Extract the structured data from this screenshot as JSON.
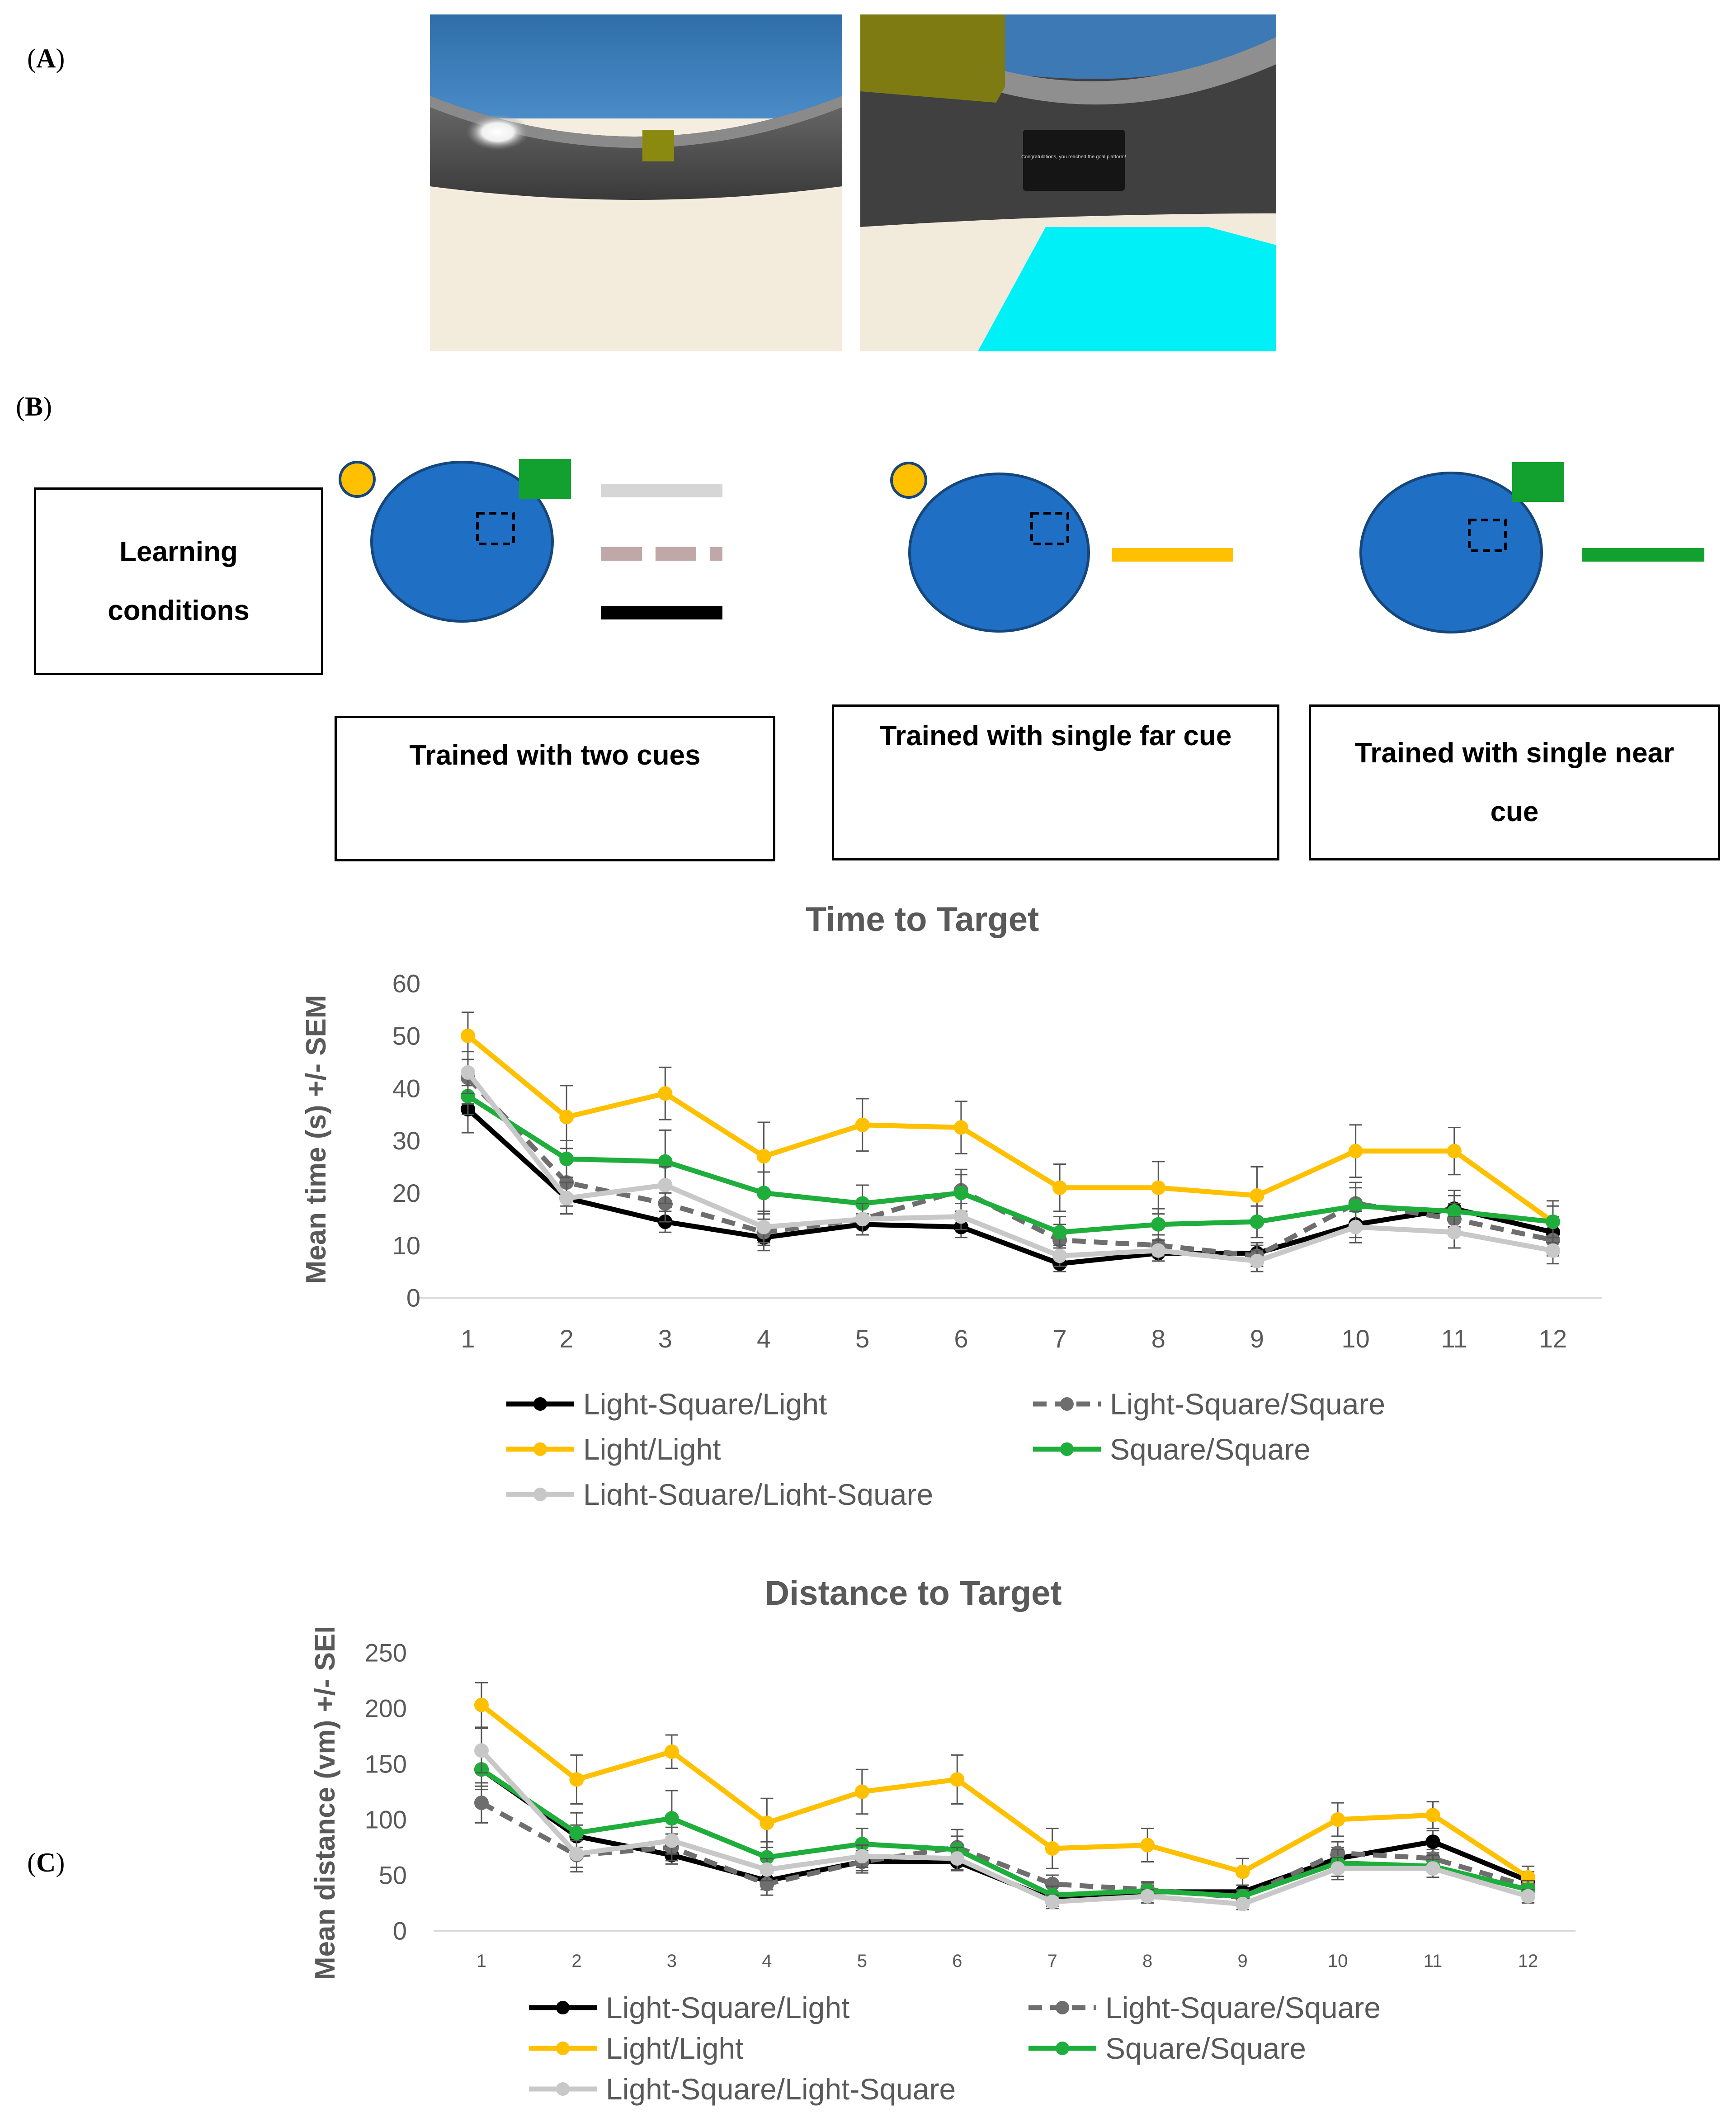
{
  "panels": {
    "a": "A",
    "b": "B",
    "c": "C"
  },
  "screenshots": {
    "left": {
      "description_free": true
    },
    "right": {
      "message": "Congratulations, you reached the goal platform!"
    }
  },
  "learning": {
    "label_line1": "Learning",
    "label_line2": "conditions",
    "groups": [
      {
        "label": "Trained with two cues"
      },
      {
        "label": "Trained with single far cue"
      },
      {
        "label_line1": "Trained with single near",
        "label_line2": "cue"
      }
    ]
  },
  "colors": {
    "pool": "#1f6fc5",
    "pool_edge": "#15467c",
    "light_cue": "#ffc000",
    "square_cue": "#12a12e",
    "black": "#000000",
    "dark_gray": "#6e6e6e",
    "yellow": "#ffc000",
    "green": "#1fae3c",
    "light_gray": "#c8c8c8",
    "pink_gray": "#c0a8a8",
    "axis_text": "#595959"
  },
  "chart_data": [
    {
      "type": "line",
      "title": "Time to Target",
      "xlabel": "",
      "ylabel": "Mean time (s) +/- SEM",
      "categories": [
        "1",
        "2",
        "3",
        "4",
        "5",
        "6",
        "7",
        "8",
        "9",
        "10",
        "11",
        "12"
      ],
      "ylim": [
        0,
        60
      ],
      "yticks": [
        0,
        10,
        20,
        30,
        40,
        50,
        60
      ],
      "series": [
        {
          "name": "Light-Square/Light",
          "color": "#000000",
          "dashed": false,
          "values": [
            36,
            19,
            14.5,
            11.5,
            14,
            13.5,
            6.5,
            8.5,
            8.5,
            14,
            17,
            12.5
          ],
          "err": [
            4.5,
            3,
            2,
            2.5,
            2,
            2,
            1.5,
            1.5,
            2,
            2.5,
            3.5,
            3
          ]
        },
        {
          "name": "Light-Square/Square",
          "color": "#6e6e6e",
          "dashed": true,
          "values": [
            42,
            22,
            18,
            12.5,
            15,
            20.5,
            11,
            10,
            8,
            18,
            15,
            11
          ],
          "err": [
            5,
            4.5,
            3.5,
            2.5,
            3,
            4,
            3,
            2,
            2,
            4,
            3,
            3
          ]
        },
        {
          "name": "Light/Light",
          "color": "#ffc000",
          "dashed": false,
          "values": [
            50,
            34.5,
            39,
            27,
            33,
            32.5,
            21,
            21,
            19.5,
            28,
            28,
            14.5
          ],
          "err": [
            4.5,
            6,
            5,
            6.5,
            5,
            5,
            4.5,
            5,
            5.5,
            5,
            4.5,
            4
          ]
        },
        {
          "name": "Square/Square",
          "color": "#1fae3c",
          "dashed": false,
          "values": [
            38.5,
            26.5,
            26,
            20,
            18,
            20,
            12.5,
            14,
            14.5,
            17.5,
            16.5,
            14.5
          ],
          "err": [
            3.5,
            3.5,
            6,
            4,
            3.5,
            3.5,
            3,
            3,
            3,
            3.5,
            3,
            3
          ]
        },
        {
          "name": "Light-Square/Light-Square",
          "color": "#c8c8c8",
          "dashed": false,
          "values": [
            43,
            19,
            21.5,
            13.5,
            15,
            15.5,
            8,
            9,
            7,
            13.5,
            12.5,
            9
          ],
          "err": [
            4,
            3,
            3.5,
            3,
            3,
            2.5,
            2,
            2,
            2,
            3,
            3,
            2.5
          ]
        }
      ]
    },
    {
      "type": "line",
      "title": "Distance to Target",
      "xlabel": "",
      "ylabel": "Mean distance (vm) +/- SEM",
      "categories": [
        "1",
        "2",
        "3",
        "4",
        "5",
        "6",
        "7",
        "8",
        "9",
        "10",
        "11",
        "12"
      ],
      "ylim": [
        0,
        250
      ],
      "yticks": [
        0,
        50,
        100,
        150,
        200,
        250
      ],
      "series": [
        {
          "name": "Light-Square/Light",
          "color": "#000000",
          "dashed": false,
          "values": [
            145,
            85,
            68,
            45,
            62,
            62,
            28,
            35,
            35,
            65,
            80,
            45
          ],
          "err": [
            18,
            10,
            8,
            8,
            8,
            8,
            6,
            6,
            6,
            10,
            10,
            8
          ]
        },
        {
          "name": "Light-Square/Square",
          "color": "#6e6e6e",
          "dashed": true,
          "values": [
            115,
            68,
            75,
            42,
            62,
            75,
            42,
            37,
            30,
            70,
            65,
            40
          ],
          "err": [
            18,
            15,
            12,
            10,
            10,
            10,
            8,
            6,
            6,
            10,
            8,
            8
          ]
        },
        {
          "name": "Light/Light",
          "color": "#ffc000",
          "dashed": false,
          "values": [
            203,
            136,
            161,
            97,
            125,
            136,
            74,
            77,
            53,
            100,
            104,
            48
          ],
          "err": [
            20,
            22,
            15,
            22,
            20,
            22,
            18,
            15,
            12,
            15,
            12,
            10
          ]
        },
        {
          "name": "Square/Square",
          "color": "#1fae3c",
          "dashed": false,
          "values": [
            145,
            88,
            101,
            66,
            78,
            73,
            32,
            36,
            31,
            61,
            58,
            37
          ],
          "err": [
            15,
            18,
            25,
            14,
            14,
            18,
            8,
            8,
            6,
            12,
            10,
            8
          ]
        },
        {
          "name": "Light-Square/Light-Square",
          "color": "#c8c8c8",
          "dashed": false,
          "values": [
            162,
            69,
            81,
            55,
            67,
            65,
            26,
            31,
            24,
            56,
            56,
            31
          ],
          "err": [
            20,
            12,
            12,
            10,
            10,
            10,
            6,
            6,
            5,
            10,
            8,
            6
          ]
        }
      ]
    }
  ]
}
